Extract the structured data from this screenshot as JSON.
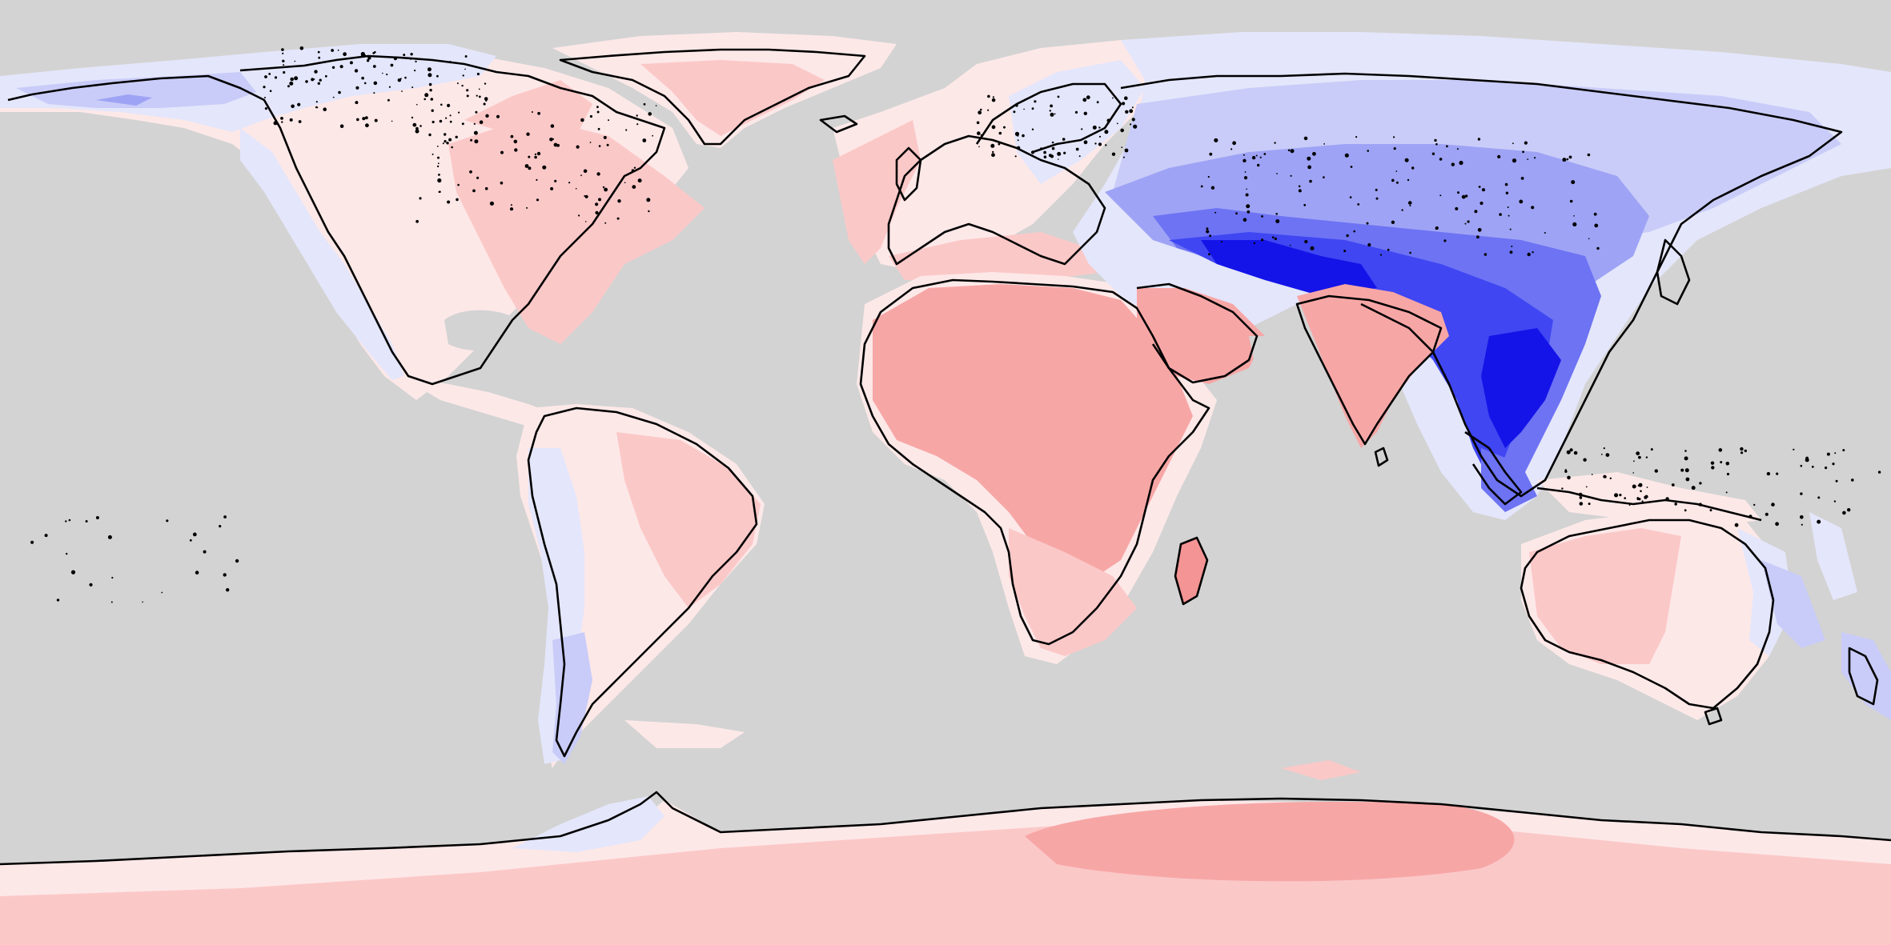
{
  "map": {
    "projection": "equirectangular",
    "extent": {
      "lon": [
        -180,
        180
      ],
      "lat": [
        -90,
        90
      ]
    },
    "background_color": "#d3d3d3",
    "coastline_color": "#000000",
    "colorscale": {
      "type": "diverging",
      "positive_colors": [
        "#fde8e8",
        "#fbc8c8",
        "#f7a6a6",
        "#f49494"
      ],
      "neutral_color": "#eeeeff",
      "negative_colors": [
        "#e4e6fb",
        "#c9ccf8",
        "#9ea3f5",
        "#6d73f3",
        "#3f46f2",
        "#1414e8"
      ]
    },
    "regions": [
      {
        "name": "arctic-north-america-blue",
        "polarity": "negative",
        "level": 1
      },
      {
        "name": "eastern-north-america-red",
        "polarity": "positive",
        "level": 1
      },
      {
        "name": "greenland-red",
        "polarity": "positive",
        "level": 2
      },
      {
        "name": "andes-blue",
        "polarity": "negative",
        "level": 1
      },
      {
        "name": "brazil-red",
        "polarity": "positive",
        "level": 1
      },
      {
        "name": "europe-red",
        "polarity": "positive",
        "level": 1
      },
      {
        "name": "africa-red",
        "polarity": "positive",
        "level": 3
      },
      {
        "name": "arabia-red",
        "polarity": "positive",
        "level": 3
      },
      {
        "name": "india-red",
        "polarity": "positive",
        "level": 3
      },
      {
        "name": "siberia-blue",
        "polarity": "negative",
        "level": 2
      },
      {
        "name": "central-asia-blue",
        "polarity": "negative",
        "level": 4
      },
      {
        "name": "east-asia-blue",
        "polarity": "negative",
        "level": 5
      },
      {
        "name": "southeast-asia-blue",
        "polarity": "negative",
        "level": 6
      },
      {
        "name": "australia-red",
        "polarity": "positive",
        "level": 1
      },
      {
        "name": "new-zealand-blue",
        "polarity": "negative",
        "level": 2
      },
      {
        "name": "antarctica-red",
        "polarity": "positive",
        "level": 2
      },
      {
        "name": "east-antarctica-red",
        "polarity": "positive",
        "level": 3
      }
    ]
  }
}
